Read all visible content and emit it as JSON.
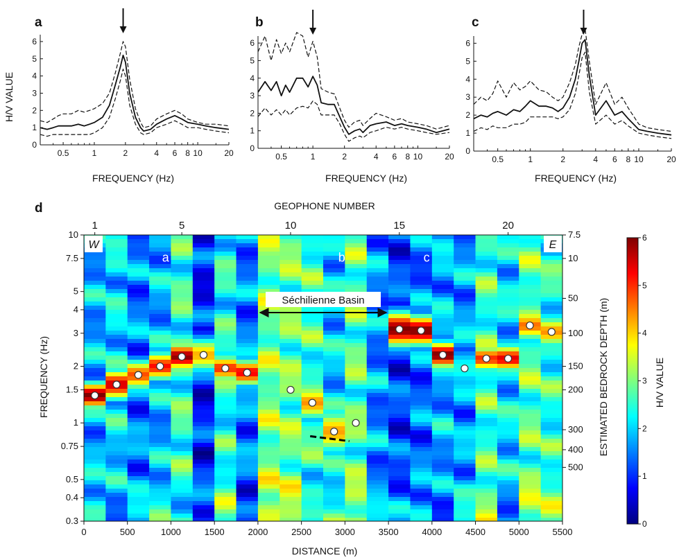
{
  "colors": {
    "colormap": [
      "#00007f",
      "#0000ff",
      "#007fff",
      "#00ffff",
      "#7fff7f",
      "#ffff00",
      "#ff7f00",
      "#ff0000",
      "#7f0000"
    ],
    "line": "#111111"
  },
  "chart_data": [
    {
      "type": "line",
      "panel_label": "a",
      "xlabel": "FREQUENCY (Hz)",
      "ylabel": "H/V VALUE",
      "x_scale": "log",
      "xlim": [
        0.3,
        20
      ],
      "ylim": [
        0,
        6.4
      ],
      "x_ticks": [
        0.5,
        1,
        2,
        4,
        6,
        8,
        10,
        20
      ],
      "x_tick_labels": [
        "0.5",
        "1",
        "2",
        "4",
        "6",
        "8",
        "10",
        "20"
      ],
      "y_ticks": [
        0,
        1,
        2,
        3,
        4,
        5,
        6
      ],
      "peak_frequency_arrow": 1.9,
      "x": [
        0.3,
        0.35,
        0.4,
        0.45,
        0.5,
        0.6,
        0.7,
        0.8,
        0.9,
        1.0,
        1.2,
        1.4,
        1.6,
        1.8,
        1.9,
        2.0,
        2.2,
        2.5,
        2.8,
        3.0,
        3.5,
        4,
        5,
        6,
        7,
        8,
        10,
        12,
        15,
        20
      ],
      "series": [
        {
          "name": "mean",
          "style": "solid",
          "values": [
            1.0,
            0.9,
            1.0,
            1.1,
            1.1,
            1.1,
            1.2,
            1.1,
            1.2,
            1.3,
            1.6,
            2.3,
            3.5,
            4.6,
            5.2,
            4.8,
            3.0,
            1.6,
            1.0,
            0.8,
            0.9,
            1.2,
            1.5,
            1.7,
            1.5,
            1.3,
            1.2,
            1.1,
            1.0,
            0.9
          ]
        },
        {
          "name": "mean + std",
          "style": "dashed",
          "values": [
            1.4,
            1.3,
            1.5,
            1.7,
            1.8,
            1.8,
            2.0,
            1.9,
            2.0,
            2.1,
            2.4,
            3.0,
            4.2,
            5.4,
            6.0,
            5.7,
            3.8,
            2.1,
            1.3,
            1.0,
            1.1,
            1.5,
            1.8,
            2.0,
            1.8,
            1.5,
            1.3,
            1.2,
            1.2,
            1.1
          ]
        },
        {
          "name": "mean - std",
          "style": "dashed",
          "values": [
            0.6,
            0.5,
            0.6,
            0.6,
            0.6,
            0.6,
            0.6,
            0.6,
            0.6,
            0.7,
            1.0,
            1.6,
            2.7,
            3.8,
            4.4,
            4.0,
            2.3,
            1.2,
            0.7,
            0.6,
            0.7,
            1.0,
            1.2,
            1.4,
            1.2,
            1.0,
            1.0,
            0.9,
            0.8,
            0.7
          ]
        }
      ]
    },
    {
      "type": "line",
      "panel_label": "b",
      "xlabel": "FREQUENCY (Hz)",
      "ylabel": "",
      "x_scale": "log",
      "xlim": [
        0.3,
        20
      ],
      "ylim": [
        0,
        6.4
      ],
      "x_ticks": [
        0.5,
        1,
        2,
        4,
        6,
        8,
        10,
        20
      ],
      "x_tick_labels": [
        "0.5",
        "1",
        "2",
        "4",
        "6",
        "8",
        "10",
        "20"
      ],
      "y_ticks": [
        0,
        1,
        2,
        3,
        4,
        5,
        6
      ],
      "peak_frequency_arrow": 1.0,
      "x": [
        0.3,
        0.35,
        0.4,
        0.45,
        0.5,
        0.55,
        0.6,
        0.7,
        0.8,
        0.9,
        1.0,
        1.1,
        1.2,
        1.4,
        1.6,
        1.8,
        2.0,
        2.2,
        2.5,
        2.8,
        3.0,
        3.5,
        4,
        5,
        6,
        7,
        8,
        10,
        12,
        15,
        20
      ],
      "series": [
        {
          "name": "mean",
          "style": "solid",
          "values": [
            3.2,
            3.8,
            3.3,
            3.8,
            3.0,
            3.6,
            3.2,
            4.0,
            4.0,
            3.5,
            4.1,
            3.6,
            2.6,
            2.5,
            2.5,
            1.8,
            1.2,
            0.8,
            1.0,
            1.1,
            0.9,
            1.3,
            1.4,
            1.5,
            1.3,
            1.4,
            1.3,
            1.2,
            1.1,
            0.9,
            1.1
          ]
        },
        {
          "name": "mean + std",
          "style": "dashed",
          "values": [
            5.5,
            6.4,
            5.0,
            6.2,
            5.4,
            6.0,
            5.5,
            6.6,
            6.4,
            5.2,
            6.1,
            5.2,
            3.4,
            3.2,
            3.1,
            2.3,
            1.6,
            1.2,
            1.5,
            1.6,
            1.3,
            1.7,
            2.0,
            1.8,
            1.6,
            1.7,
            1.5,
            1.4,
            1.3,
            1.1,
            1.3
          ]
        },
        {
          "name": "mean - std",
          "style": "dashed",
          "values": [
            1.8,
            2.3,
            1.9,
            2.2,
            1.9,
            2.2,
            1.9,
            2.3,
            2.4,
            2.3,
            2.7,
            2.5,
            1.9,
            1.9,
            1.9,
            1.4,
            0.8,
            0.4,
            0.6,
            0.7,
            0.6,
            0.9,
            1.0,
            1.2,
            1.1,
            1.2,
            1.1,
            1.0,
            0.9,
            0.8,
            0.9
          ]
        }
      ]
    },
    {
      "type": "line",
      "panel_label": "c",
      "xlabel": "FREQUENCY (Hz)",
      "ylabel": "",
      "x_scale": "log",
      "xlim": [
        0.3,
        20
      ],
      "ylim": [
        0,
        6.4
      ],
      "x_ticks": [
        0.5,
        1,
        2,
        4,
        6,
        8,
        10,
        20
      ],
      "x_tick_labels": [
        "0.5",
        "1",
        "2",
        "4",
        "6",
        "8",
        "10",
        "20"
      ],
      "y_ticks": [
        0,
        1,
        2,
        3,
        4,
        5,
        6
      ],
      "peak_frequency_arrow": 3.1,
      "x": [
        0.3,
        0.35,
        0.4,
        0.45,
        0.5,
        0.6,
        0.7,
        0.8,
        0.9,
        1.0,
        1.2,
        1.4,
        1.6,
        1.8,
        2.0,
        2.3,
        2.6,
        2.8,
        3.0,
        3.2,
        3.5,
        4,
        5,
        6,
        7,
        8,
        10,
        12,
        15,
        20
      ],
      "series": [
        {
          "name": "mean",
          "style": "solid",
          "values": [
            1.8,
            2.0,
            1.9,
            2.1,
            2.2,
            2.0,
            2.3,
            2.2,
            2.5,
            2.8,
            2.5,
            2.5,
            2.4,
            2.2,
            2.4,
            3.0,
            4.0,
            5.0,
            6.0,
            6.2,
            4.2,
            2.0,
            2.8,
            2.0,
            2.2,
            1.8,
            1.2,
            1.1,
            1.0,
            0.9
          ]
        },
        {
          "name": "mean + std",
          "style": "dashed",
          "values": [
            2.6,
            3.0,
            2.8,
            3.2,
            3.9,
            3.0,
            3.8,
            3.4,
            3.6,
            3.9,
            3.4,
            3.3,
            3.0,
            2.8,
            3.0,
            3.8,
            4.8,
            5.8,
            6.5,
            6.8,
            5.0,
            2.6,
            3.8,
            2.6,
            3.0,
            2.4,
            1.5,
            1.3,
            1.2,
            1.1
          ]
        },
        {
          "name": "mean - std",
          "style": "dashed",
          "values": [
            1.1,
            1.3,
            1.2,
            1.4,
            1.3,
            1.3,
            1.5,
            1.5,
            1.6,
            1.9,
            1.9,
            1.9,
            1.9,
            1.8,
            1.9,
            2.3,
            3.2,
            4.2,
            5.2,
            5.5,
            3.3,
            1.5,
            2.0,
            1.5,
            1.7,
            1.4,
            1.0,
            0.9,
            0.8,
            0.7
          ]
        }
      ]
    },
    {
      "type": "heatmap",
      "panel_label": "d",
      "xlabel": "DISTANCE (m)",
      "ylabel": "FREQUENCY (Hz)",
      "top_label": "GEOPHONE NUMBER",
      "right_label": "ESTIMATED BEDROCK DEPTH (m)",
      "colorbar_label": "H/V VALUE",
      "colorbar_range": [
        0,
        6
      ],
      "colorbar_ticks": [
        0,
        1,
        2,
        3,
        4,
        5,
        6
      ],
      "xlim": [
        0,
        5500
      ],
      "ylim": [
        0.3,
        10
      ],
      "y_scale": "log",
      "x_ticks": [
        0,
        500,
        1000,
        1500,
        2000,
        2500,
        3000,
        3500,
        4000,
        4500,
        5000,
        5500
      ],
      "y_ticks": [
        0.3,
        0.4,
        0.5,
        0.75,
        1,
        1.5,
        2,
        3,
        4,
        5,
        7.5,
        10
      ],
      "y_tick_labels": [
        "0.3",
        "0.4",
        "0.5",
        "0.75",
        "1",
        "1.5",
        "2",
        "3",
        "4",
        "5",
        "7.5",
        "10"
      ],
      "top_ticks": [
        {
          "label": "1",
          "x": 125
        },
        {
          "label": "5",
          "x": 1125
        },
        {
          "label": "10",
          "x": 2375
        },
        {
          "label": "15",
          "x": 3625
        },
        {
          "label": "20",
          "x": 4875
        }
      ],
      "depth_ticks": [
        {
          "label": "7.5",
          "f": 10
        },
        {
          "label": "10",
          "f": 7.5
        },
        {
          "label": "50",
          "f": 4.6
        },
        {
          "label": "100",
          "f": 3.0
        },
        {
          "label": "150",
          "f": 2.0
        },
        {
          "label": "200",
          "f": 1.5
        },
        {
          "label": "300",
          "f": 0.92
        },
        {
          "label": "400",
          "f": 0.72
        },
        {
          "label": "500",
          "f": 0.58
        }
      ],
      "geophone_centers": [
        125,
        375,
        625,
        875,
        1125,
        1375,
        1625,
        1875,
        2125,
        2375,
        2625,
        2875,
        3125,
        3375,
        3625,
        3875,
        4125,
        4375,
        4625,
        4875,
        5125,
        5375
      ],
      "peak_freqs": [
        1.4,
        1.6,
        1.8,
        2.0,
        2.25,
        2.3,
        1.95,
        1.85,
        1.2,
        1.5,
        1.28,
        0.9,
        1.0,
        0.35,
        3.15,
        3.1,
        2.3,
        1.95,
        2.2,
        2.2,
        3.3,
        3.05
      ],
      "peak_amps": [
        6.0,
        5.5,
        4.8,
        5.2,
        5.9,
        4.2,
        5.0,
        5.3,
        3.0,
        3.0,
        4.4,
        4.3,
        3.2,
        2.2,
        6.0,
        6.0,
        6.0,
        2.4,
        5.0,
        5.4,
        4.6,
        4.4
      ],
      "peak_widths": [
        0.12,
        0.14,
        0.14,
        0.13,
        0.12,
        0.16,
        0.12,
        0.12,
        0.3,
        0.18,
        0.16,
        0.2,
        0.16,
        0.4,
        0.16,
        0.14,
        0.12,
        0.2,
        0.12,
        0.12,
        0.14,
        0.14
      ],
      "background_levels": [
        1.8,
        2.1,
        1.5,
        1.8,
        2.6,
        0.9,
        2.4,
        1.5,
        3.0,
        2.9,
        2.6,
        2.0,
        2.8,
        1.6,
        1.1,
        1.4,
        1.8,
        1.7,
        2.6,
        2.1,
        2.8,
        2.5
      ],
      "measured_points": [
        {
          "x": 125,
          "f": 1.4
        },
        {
          "x": 375,
          "f": 1.6
        },
        {
          "x": 625,
          "f": 1.8
        },
        {
          "x": 875,
          "f": 2.0
        },
        {
          "x": 1125,
          "f": 2.25
        },
        {
          "x": 1375,
          "f": 2.3
        },
        {
          "x": 1625,
          "f": 1.95
        },
        {
          "x": 1875,
          "f": 1.85
        },
        {
          "x": 2375,
          "f": 1.5
        },
        {
          "x": 2625,
          "f": 1.28
        },
        {
          "x": 2875,
          "f": 0.9
        },
        {
          "x": 3125,
          "f": 1.0
        },
        {
          "x": 3625,
          "f": 3.15
        },
        {
          "x": 3875,
          "f": 3.1
        },
        {
          "x": 4125,
          "f": 2.3
        },
        {
          "x": 4375,
          "f": 1.95
        },
        {
          "x": 4625,
          "f": 2.2
        },
        {
          "x": 4875,
          "f": 2.2
        },
        {
          "x": 5125,
          "f": 3.3
        },
        {
          "x": 5375,
          "f": 3.05
        }
      ],
      "dashed_segment": [
        {
          "x": 2600,
          "f": 0.85
        },
        {
          "x": 3050,
          "f": 0.8
        }
      ],
      "annotations": {
        "west": "W",
        "east": "E",
        "site_a": {
          "text": "a",
          "x": 875,
          "f": 7.4
        },
        "site_b": {
          "text": "b",
          "x": 2900,
          "f": 7.4
        },
        "site_c": {
          "text": "c",
          "x": 3875,
          "f": 7.4
        },
        "basin": {
          "text": "Séchilienne Basin",
          "x_from": 2000,
          "x_to": 3500,
          "f": 4.5
        }
      }
    }
  ]
}
